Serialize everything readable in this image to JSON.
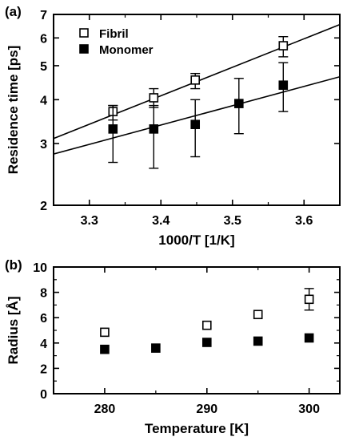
{
  "chart_data": [
    {
      "panel_label": "(a)",
      "type": "scatter",
      "xlabel": "1000/T [1/K]",
      "ylabel": "Residence time [ps]",
      "xlim": [
        3.25,
        3.65
      ],
      "ylim": [
        2,
        7
      ],
      "yscale": "log",
      "xticks": [
        3.3,
        3.4,
        3.5,
        3.6
      ],
      "xtick_labels": [
        "3.3",
        "3.4",
        "3.5",
        "3.6"
      ],
      "yticks": [
        2,
        3,
        4,
        5,
        6,
        7
      ],
      "ytick_labels": [
        "2",
        "3",
        "4",
        "5",
        "6",
        "7"
      ],
      "grid": false,
      "legend_position": "top-left",
      "series": [
        {
          "name": "Fibril",
          "marker": "open-square",
          "x": [
            3.333,
            3.39,
            3.448,
            3.571
          ],
          "y": [
            3.7,
            4.05,
            4.55,
            5.7
          ],
          "err_low": [
            3.5,
            3.8,
            4.3,
            5.3
          ],
          "err_high": [
            3.85,
            4.3,
            4.75,
            6.05
          ],
          "fit_line": {
            "x": [
              3.25,
              3.65
            ],
            "y": [
              3.1,
              6.55
            ]
          }
        },
        {
          "name": "Monomer",
          "marker": "filled-square",
          "x": [
            3.333,
            3.39,
            3.448,
            3.509,
            3.571
          ],
          "y": [
            3.3,
            3.3,
            3.4,
            3.9,
            4.4
          ],
          "err_low": [
            2.65,
            2.55,
            2.75,
            3.2,
            3.7
          ],
          "err_high": [
            3.85,
            3.85,
            4.0,
            4.6,
            5.1
          ],
          "fit_line": {
            "x": [
              3.25,
              3.65
            ],
            "y": [
              2.8,
              4.65
            ]
          }
        }
      ]
    },
    {
      "panel_label": "(b)",
      "type": "scatter",
      "xlabel": "Temperature [K]",
      "ylabel": "Radius [Å]",
      "xlim": [
        275,
        303
      ],
      "ylim": [
        0,
        10
      ],
      "xticks": [
        280,
        290,
        300
      ],
      "xtick_labels": [
        "280",
        "290",
        "300"
      ],
      "yticks": [
        0,
        2,
        4,
        6,
        8,
        10
      ],
      "ytick_labels": [
        "0",
        "2",
        "4",
        "6",
        "8",
        "10"
      ],
      "grid": false,
      "series": [
        {
          "marker": "open-square",
          "x": [
            280,
            290,
            295,
            300
          ],
          "y": [
            4.85,
            5.4,
            6.25,
            7.45
          ],
          "err_low": [
            null,
            null,
            null,
            6.6
          ],
          "err_high": [
            null,
            null,
            null,
            8.3
          ]
        },
        {
          "marker": "filled-square",
          "x": [
            280,
            285,
            290,
            295,
            300
          ],
          "y": [
            3.5,
            3.6,
            4.05,
            4.15,
            4.4
          ]
        }
      ]
    }
  ]
}
